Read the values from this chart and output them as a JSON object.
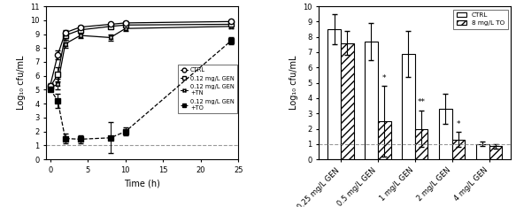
{
  "left": {
    "xlabel": "Time (h)",
    "ylabel": "Log₁₀ cfu/mL",
    "xlim": [
      -0.5,
      25
    ],
    "ylim": [
      0,
      11
    ],
    "yticks": [
      0,
      1,
      2,
      3,
      4,
      5,
      6,
      7,
      8,
      9,
      10,
      11
    ],
    "xticks": [
      0,
      5,
      10,
      15,
      20,
      25
    ],
    "dashed_line_y": 1,
    "CTRL_x": [
      0,
      1,
      2,
      4,
      8,
      10,
      24
    ],
    "CTRL_y": [
      5.3,
      7.5,
      9.1,
      9.5,
      9.7,
      9.8,
      9.9
    ],
    "CTRL_yerr": [
      0.15,
      0.3,
      0.2,
      0.1,
      0.1,
      0.1,
      0.08
    ],
    "GEN_x": [
      0,
      1,
      2,
      4,
      8,
      10,
      24
    ],
    "GEN_y": [
      5.2,
      6.1,
      8.9,
      9.3,
      9.55,
      9.65,
      9.7
    ],
    "GEN_yerr": [
      0.15,
      0.5,
      0.3,
      0.2,
      0.1,
      0.1,
      0.12
    ],
    "TN_x": [
      0,
      1,
      2,
      4,
      8,
      10,
      24
    ],
    "TN_y": [
      5.15,
      5.4,
      8.3,
      8.9,
      8.75,
      9.4,
      9.55
    ],
    "TN_yerr": [
      0.15,
      0.4,
      0.3,
      0.2,
      0.2,
      0.15,
      0.12
    ],
    "TO_x": [
      0,
      1,
      2,
      4,
      8,
      10,
      24
    ],
    "TO_y": [
      5.05,
      4.2,
      1.5,
      1.45,
      1.55,
      2.0,
      8.5
    ],
    "TO_yerr": [
      0.15,
      0.5,
      0.35,
      0.3,
      1.1,
      0.3,
      0.25
    ]
  },
  "right": {
    "ylabel": "Log₁₀ cfu/mL",
    "ylim": [
      0,
      10
    ],
    "yticks": [
      0,
      1,
      2,
      3,
      4,
      5,
      6,
      7,
      8,
      9,
      10
    ],
    "dashed_line_y": 1,
    "categories": [
      "0.25 mg/L GEN",
      "0.5 mg/L GEN",
      "1 mg/L GEN",
      "2 mg/L GEN",
      "4 mg/L GEN"
    ],
    "ctrl_values": [
      8.5,
      7.7,
      6.9,
      3.3,
      1.0
    ],
    "ctrl_yerr": [
      1.0,
      1.2,
      1.5,
      1.0,
      0.15
    ],
    "to_values": [
      7.6,
      2.5,
      2.0,
      1.3,
      0.85
    ],
    "to_yerr": [
      0.8,
      2.3,
      1.2,
      0.5,
      0.15
    ],
    "significance": [
      "",
      "*",
      "**",
      "*",
      ""
    ]
  }
}
